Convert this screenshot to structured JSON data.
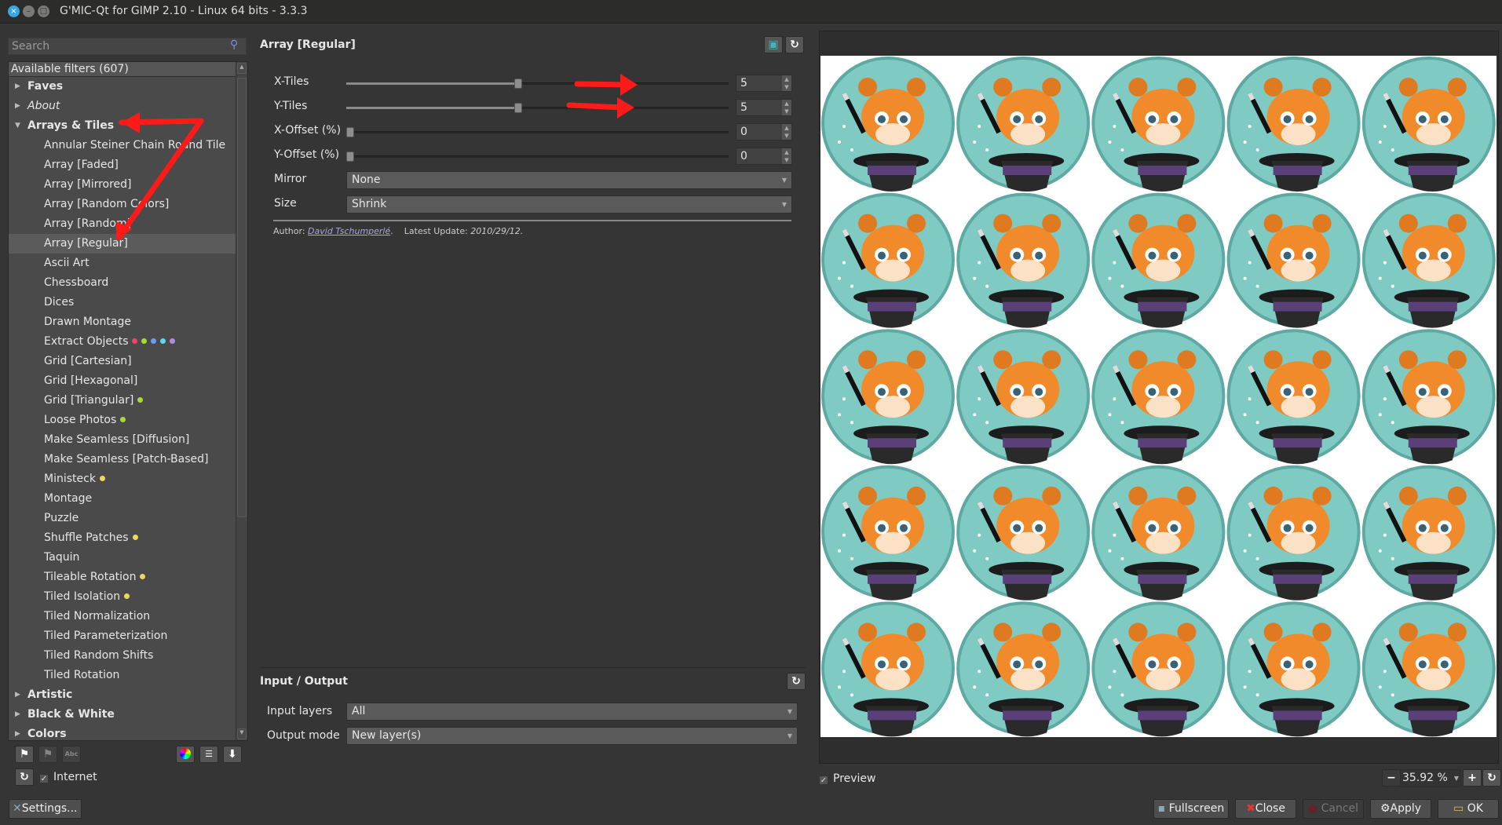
{
  "window": {
    "title": "G'MIC-Qt for GIMP 2.10 - Linux 64 bits - 3.3.3"
  },
  "search": {
    "placeholder": "Search"
  },
  "tree": {
    "header": "Available filters (607)",
    "rows": [
      {
        "label": "Faves",
        "type": "cat",
        "expanded": false
      },
      {
        "label": "About",
        "type": "cat",
        "expanded": false,
        "italic": true
      },
      {
        "label": "Arrays & Tiles",
        "type": "cat",
        "expanded": true
      },
      {
        "label": "Annular Steiner Chain Round Tile",
        "type": "fil"
      },
      {
        "label": "Array [Faded]",
        "type": "fil"
      },
      {
        "label": "Array [Mirrored]",
        "type": "fil"
      },
      {
        "label": "Array [Random Colors]",
        "type": "fil"
      },
      {
        "label": "Array [Random]",
        "type": "fil"
      },
      {
        "label": "Array [Regular]",
        "type": "fil",
        "selected": true
      },
      {
        "label": "Ascii Art",
        "type": "fil"
      },
      {
        "label": "Chessboard",
        "type": "fil"
      },
      {
        "label": "Dices",
        "type": "fil"
      },
      {
        "label": "Drawn Montage",
        "type": "fil"
      },
      {
        "label": "Extract Objects",
        "type": "fil",
        "dots": [
          "#e8456b",
          "#a6d93a",
          "#6a9cf0",
          "#5ad8ee",
          "#b58ae6"
        ]
      },
      {
        "label": "Grid [Cartesian]",
        "type": "fil"
      },
      {
        "label": "Grid [Hexagonal]",
        "type": "fil"
      },
      {
        "label": "Grid [Triangular]",
        "type": "fil",
        "dots": [
          "#a6d93a"
        ]
      },
      {
        "label": "Loose Photos",
        "type": "fil",
        "dots": [
          "#a6d93a"
        ]
      },
      {
        "label": "Make Seamless [Diffusion]",
        "type": "fil"
      },
      {
        "label": "Make Seamless [Patch-Based]",
        "type": "fil"
      },
      {
        "label": "Ministeck",
        "type": "fil",
        "dots": [
          "#ecd85a"
        ]
      },
      {
        "label": "Montage",
        "type": "fil"
      },
      {
        "label": "Puzzle",
        "type": "fil"
      },
      {
        "label": "Shuffle Patches",
        "type": "fil",
        "dots": [
          "#ecd85a"
        ]
      },
      {
        "label": "Taquin",
        "type": "fil"
      },
      {
        "label": "Tileable Rotation",
        "type": "fil",
        "dots": [
          "#ecd85a"
        ]
      },
      {
        "label": "Tiled Isolation",
        "type": "fil",
        "dots": [
          "#ecd85a"
        ]
      },
      {
        "label": "Tiled Normalization",
        "type": "fil"
      },
      {
        "label": "Tiled Parameterization",
        "type": "fil"
      },
      {
        "label": "Tiled Random Shifts",
        "type": "fil"
      },
      {
        "label": "Tiled Rotation",
        "type": "fil"
      },
      {
        "label": "Artistic",
        "type": "cat",
        "expanded": false
      },
      {
        "label": "Black & White",
        "type": "cat",
        "expanded": false
      },
      {
        "label": "Colors",
        "type": "cat",
        "expanded": false
      }
    ]
  },
  "left_bottom": {
    "internet_label": "Internet",
    "internet_checked": true,
    "settings_label": "Settings..."
  },
  "filter": {
    "title": "Array [Regular]",
    "sliders": [
      {
        "label": "X-Tiles",
        "value": "5",
        "fraction": 0.45
      },
      {
        "label": "Y-Tiles",
        "value": "5",
        "fraction": 0.45
      },
      {
        "label": "X-Offset (%)",
        "value": "0",
        "fraction": 0
      },
      {
        "label": "Y-Offset (%)",
        "value": "0",
        "fraction": 0
      }
    ],
    "combos": [
      {
        "label": "Mirror",
        "value": "None"
      },
      {
        "label": "Size",
        "value": "Shrink"
      }
    ],
    "author_label": "Author:",
    "author": "David Tschumperlé",
    "update_label": "Latest Update:",
    "update": "2010/29/12."
  },
  "io": {
    "title": "Input / Output",
    "input_label": "Input layers",
    "input_value": "All",
    "output_label": "Output mode",
    "output_value": "New layer(s)"
  },
  "preview": {
    "label": "Preview",
    "checked": true,
    "zoom": "35.92 %",
    "tiles_x": 5,
    "tiles_y": 5,
    "tile_bg": "#7fcbc4"
  },
  "buttons": {
    "fullscreen": "Fullscreen",
    "close": "Close",
    "cancel": "Cancel",
    "apply": "Apply",
    "ok": "OK"
  },
  "annotation_color": "#ff1a1a"
}
